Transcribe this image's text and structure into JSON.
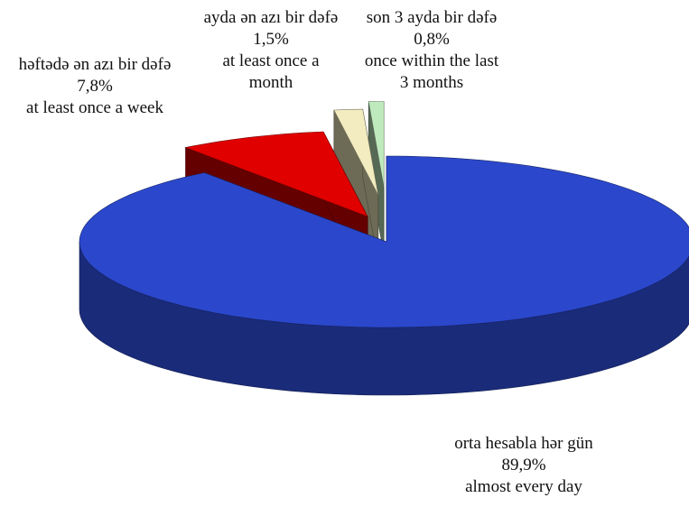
{
  "chart_data": {
    "type": "pie3d",
    "categories": [
      "orta hesabla hər gün",
      "həftədə ən azı bir dəfə",
      "ayda ən azı bir dəfə",
      "son 3 ayda bir dəfə"
    ],
    "categories_en": [
      "almost every day",
      "at least once a week",
      "at least once a month",
      "once within the last 3 months"
    ],
    "values": [
      89.9,
      7.8,
      1.5,
      0.8
    ],
    "value_labels": [
      "89,9%",
      "7,8%",
      "1,5%",
      "0,8%"
    ],
    "colors": [
      "#2b48cc",
      "#e00000",
      "#f2ecc0",
      "#bfeabd"
    ]
  }
}
